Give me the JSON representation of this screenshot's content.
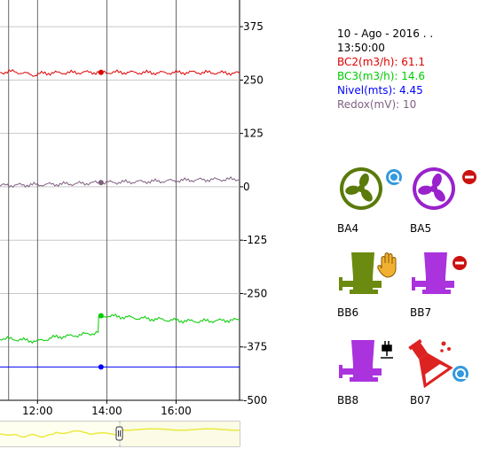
{
  "readout": {
    "datetime_line1": "10 - Ago - 2016 . .",
    "datetime_line2": "13:50:00",
    "bc2": "BC2(m3/h): 61.1",
    "bc3": "BC3(m3/h): 14.6",
    "nivel": "Nivel(mts): 4.45",
    "redox": "Redox(mV): 10"
  },
  "colors": {
    "bc2": "#e00000",
    "bc3": "#00cc00",
    "nivel": "#0000ff",
    "redox": "#806080",
    "fan_green": "#5a7a0a",
    "fan_purple": "#9922cc",
    "pump_green": "#6b8a10",
    "pump_purple": "#aa33dd",
    "alarm_red": "#cc1111",
    "auto_blue": "#3399dd"
  },
  "devices": [
    {
      "id": "BA4",
      "label": "BA4",
      "icon": "fan-icon",
      "color": "green",
      "status": "auto-cycle-icon"
    },
    {
      "id": "BA5",
      "label": "BA5",
      "icon": "fan-icon",
      "color": "purple",
      "status": "stop-alarm-icon"
    },
    {
      "id": "BB6",
      "label": "BB6",
      "icon": "pump-icon",
      "color": "green",
      "status": "manual-hand-icon"
    },
    {
      "id": "BB7",
      "label": "BB7",
      "icon": "pump-icon",
      "color": "purple",
      "status": "stop-alarm-icon"
    },
    {
      "id": "BB8",
      "label": "BB8",
      "icon": "pump-icon",
      "color": "purple",
      "status": "power-plug-icon"
    },
    {
      "id": "B07",
      "label": "B07",
      "icon": "chemical-flask-icon",
      "color": "red",
      "status": "auto-cycle-icon"
    }
  ],
  "chart_data": {
    "type": "line",
    "y_tick_labels": [
      "375",
      "250",
      "125",
      "0",
      "-125",
      "-250",
      "-375",
      "-500"
    ],
    "ylim": [
      -500,
      437.5
    ],
    "x_tick_labels": [
      "12:00",
      "14:00",
      "16:00"
    ],
    "x_range": [
      "10:55",
      "17:50"
    ],
    "cursor_time": "13:50",
    "grid": true,
    "series": [
      {
        "name": "BC2(m3/h)",
        "color_key": "bc2",
        "value_at_cursor": 268,
        "points": [
          [
            "10:55",
            268
          ],
          [
            "11:20",
            270
          ],
          [
            "11:35",
            266
          ],
          [
            "11:55",
            262
          ],
          [
            "12:10",
            266
          ],
          [
            "12:40",
            267
          ],
          [
            "13:20",
            268
          ],
          [
            "13:50",
            268
          ],
          [
            "14:30",
            268
          ],
          [
            "15:30",
            267
          ],
          [
            "16:30",
            268
          ],
          [
            "17:50",
            266
          ]
        ]
      },
      {
        "name": "BC3(m3/h)",
        "color_key": "bc3",
        "value_at_cursor": -302,
        "points": [
          [
            "10:55",
            -355
          ],
          [
            "11:30",
            -358
          ],
          [
            "12:00",
            -362
          ],
          [
            "12:30",
            -352
          ],
          [
            "13:00",
            -349
          ],
          [
            "13:35",
            -343
          ],
          [
            "13:45",
            -342
          ],
          [
            "13:46",
            -306
          ],
          [
            "14:00",
            -302
          ],
          [
            "15:00",
            -308
          ],
          [
            "16:00",
            -313
          ],
          [
            "16:30",
            -315
          ],
          [
            "17:50",
            -312
          ]
        ]
      },
      {
        "name": "Nivel(mts)",
        "color_key": "nivel",
        "value_at_cursor": -422,
        "points": [
          [
            "10:55",
            -422
          ],
          [
            "12:00",
            -422
          ],
          [
            "13:50",
            -422
          ],
          [
            "15:00",
            -422
          ],
          [
            "17:50",
            -422
          ]
        ]
      },
      {
        "name": "Redox(mV)",
        "color_key": "redox",
        "value_at_cursor": 10,
        "points": [
          [
            "10:55",
            3
          ],
          [
            "11:30",
            4
          ],
          [
            "12:00",
            5
          ],
          [
            "12:30",
            6
          ],
          [
            "13:00",
            7
          ],
          [
            "13:50",
            10
          ],
          [
            "14:30",
            11
          ],
          [
            "15:30",
            13
          ],
          [
            "16:30",
            16
          ],
          [
            "17:50",
            18
          ]
        ]
      }
    ]
  }
}
